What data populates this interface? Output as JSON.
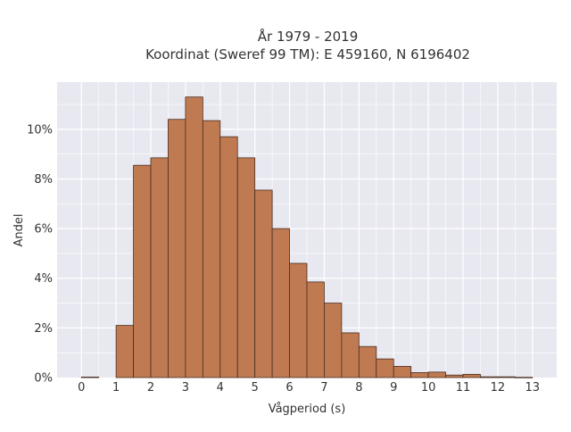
{
  "chart_data": {
    "type": "bar",
    "title": "År 1979 - 2019",
    "subtitle": "Koordinat (Sweref 99 TM): E 459160, N 6196402",
    "xlabel": "Vågperiod (s)",
    "ylabel": "Andel",
    "xlim": [
      -0.7,
      13.7
    ],
    "ylim": [
      0,
      11.9
    ],
    "x_ticks": [
      "0",
      "1",
      "2",
      "3",
      "4",
      "5",
      "6",
      "7",
      "8",
      "9",
      "10",
      "11",
      "12",
      "13"
    ],
    "y_ticks": [
      "0%",
      "2%",
      "4%",
      "6%",
      "8%",
      "10%"
    ],
    "grid": true,
    "bin_width": 0.5,
    "bins": [
      {
        "x0": 0.0,
        "value": 0.02
      },
      {
        "x0": 1.0,
        "value": 2.1
      },
      {
        "x0": 1.5,
        "value": 8.55
      },
      {
        "x0": 2.0,
        "value": 8.85
      },
      {
        "x0": 2.5,
        "value": 10.4
      },
      {
        "x0": 3.0,
        "value": 11.3
      },
      {
        "x0": 3.5,
        "value": 10.35
      },
      {
        "x0": 4.0,
        "value": 9.7
      },
      {
        "x0": 4.5,
        "value": 8.85
      },
      {
        "x0": 5.0,
        "value": 7.55
      },
      {
        "x0": 5.5,
        "value": 6.0
      },
      {
        "x0": 6.0,
        "value": 4.6
      },
      {
        "x0": 6.5,
        "value": 3.85
      },
      {
        "x0": 7.0,
        "value": 3.0
      },
      {
        "x0": 7.5,
        "value": 1.8
      },
      {
        "x0": 8.0,
        "value": 1.25
      },
      {
        "x0": 8.5,
        "value": 0.75
      },
      {
        "x0": 9.0,
        "value": 0.45
      },
      {
        "x0": 9.5,
        "value": 0.2
      },
      {
        "x0": 10.0,
        "value": 0.22
      },
      {
        "x0": 10.5,
        "value": 0.1
      },
      {
        "x0": 11.0,
        "value": 0.13
      },
      {
        "x0": 11.5,
        "value": 0.03
      },
      {
        "x0": 12.0,
        "value": 0.03
      },
      {
        "x0": 12.5,
        "value": 0.01
      }
    ],
    "colors": {
      "bar_fill": "#bf7a52",
      "bar_edge": "#4a2e1f",
      "plot_bg": "#e8e8f0",
      "grid": "#ffffff"
    }
  }
}
